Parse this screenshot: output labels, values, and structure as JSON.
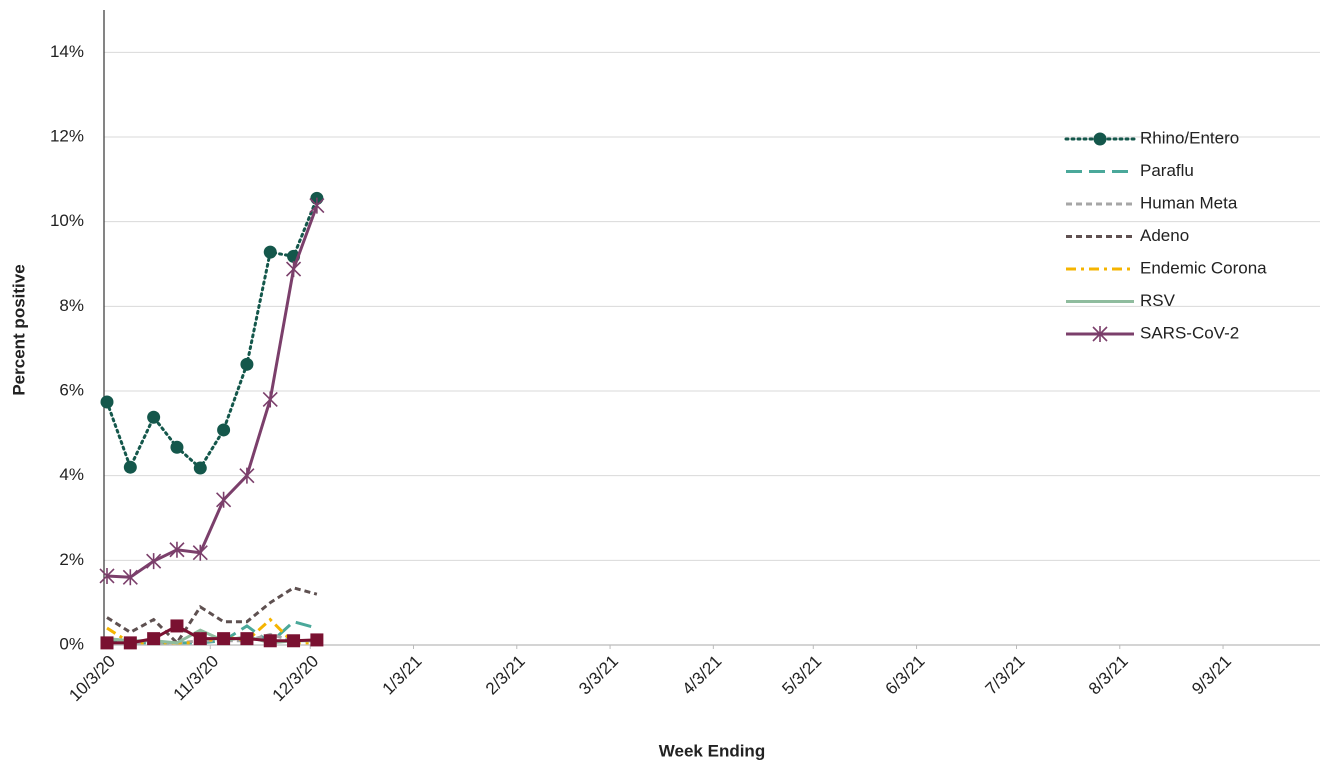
{
  "chart_data": {
    "type": "line",
    "x_label": "Week Ending",
    "y_label": "Percent positive",
    "x": [
      "10/3/20",
      "10/10/20",
      "10/17/20",
      "10/24/20",
      "10/31/20",
      "11/7/20",
      "11/14/20",
      "11/21/20",
      "11/28/20",
      "12/5/20"
    ],
    "xlim": [
      "10/3/20",
      "10/3/21"
    ],
    "xticks": [
      "10/3/20",
      "11/3/20",
      "12/3/20",
      "1/3/21",
      "2/3/21",
      "3/3/21",
      "4/3/21",
      "5/3/21",
      "6/3/21",
      "7/3/21",
      "8/3/21",
      "9/3/21"
    ],
    "ylim": [
      0,
      15
    ],
    "yticks": [
      {
        "value": 0,
        "label": "0%"
      },
      {
        "value": 2,
        "label": "2%"
      },
      {
        "value": 4,
        "label": "4%"
      },
      {
        "value": 6,
        "label": "6%"
      },
      {
        "value": 8,
        "label": "8%"
      },
      {
        "value": 10,
        "label": "10%"
      },
      {
        "value": 12,
        "label": "12%"
      },
      {
        "value": 14,
        "label": "14%"
      }
    ],
    "grid": true,
    "legend": "right",
    "series": [
      {
        "name": "Rhino/Entero",
        "color": "#14574b",
        "line_style": "dotted",
        "marker": "circle",
        "values": [
          5.74,
          4.2,
          5.38,
          4.67,
          4.18,
          5.08,
          6.63,
          9.28,
          9.18,
          10.55
        ]
      },
      {
        "name": "Paraflu",
        "color": "#4aa89a",
        "line_style": "long-dash",
        "marker": "none",
        "values": [
          0.1,
          0.05,
          0.05,
          0.05,
          0.05,
          0.1,
          0.45,
          0.05,
          0.55,
          0.4
        ]
      },
      {
        "name": "Human Meta",
        "color": "#a6a6a6",
        "line_style": "dash",
        "marker": "none",
        "values": [
          0.1,
          0.05,
          0.05,
          0.05,
          0.1,
          0.1,
          0.1,
          0.25,
          0.1,
          0.1
        ]
      },
      {
        "name": "Adeno",
        "color": "#5e5050",
        "line_style": "dash",
        "marker": "none",
        "values": [
          0.65,
          0.3,
          0.6,
          0.05,
          0.9,
          0.55,
          0.55,
          1.0,
          1.35,
          1.2
        ]
      },
      {
        "name": "Endemic Corona",
        "color": "#f5b400",
        "line_style": "dash-dot",
        "marker": "none",
        "values": [
          0.4,
          0.05,
          0.05,
          0.05,
          0.05,
          0.2,
          0.1,
          0.6,
          0.05,
          0.05
        ]
      },
      {
        "name": "RSV",
        "color": "#8fbc9e",
        "line_style": "solid",
        "marker": "none",
        "values": [
          0.15,
          0.1,
          0.1,
          0.05,
          0.35,
          0.1,
          0.2,
          0.05,
          0.1,
          0.1
        ]
      },
      {
        "name": "SARS-CoV-2",
        "color": "#7b3f6b",
        "line_style": "solid",
        "marker": "asterisk",
        "values": [
          1.63,
          1.6,
          1.98,
          2.25,
          2.18,
          3.43,
          4.0,
          5.8,
          8.88,
          10.38
        ]
      },
      {
        "color": "#7a1131",
        "line_style": "solid",
        "marker": "square",
        "values": [
          0.05,
          0.05,
          0.15,
          0.45,
          0.15,
          0.15,
          0.15,
          0.1,
          0.1,
          0.12
        ]
      }
    ]
  }
}
